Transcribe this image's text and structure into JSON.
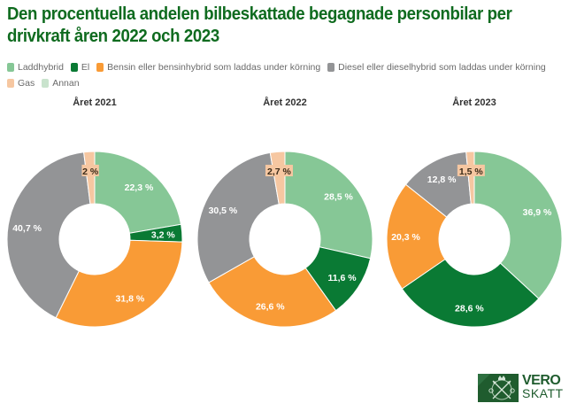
{
  "title": "Den procentuella andelen bilbeskattade begagnade personbilar per drivkraft åren 2022 och 2023",
  "legend": [
    {
      "label": "Laddhybrid",
      "color": "#86c796"
    },
    {
      "label": "El",
      "color": "#0a7a34"
    },
    {
      "label": "Bensin eller bensinhybrid som laddas under körning",
      "color": "#f99b36"
    },
    {
      "label": "Diesel eller dieselhybrid som laddas under körning",
      "color": "#939496"
    },
    {
      "label": "Gas",
      "color": "#f6c7a1"
    },
    {
      "label": "Annan",
      "color": "#c9e3cd"
    }
  ],
  "logo": {
    "line1": "VERO",
    "line2": "SKATT"
  },
  "chart_data": [
    {
      "type": "pie",
      "variant": "donut",
      "title": "Året 2021",
      "categories": [
        "Laddhybrid",
        "El",
        "Bensin eller bensinhybrid som laddas under körning",
        "Diesel eller dieselhybrid som laddas under körning",
        "Gas",
        "Annan"
      ],
      "values": [
        22.3,
        3.2,
        31.8,
        40.7,
        2.0,
        0
      ],
      "labels": [
        "22,3 %",
        "3,2 %",
        "31,8 %",
        "40,7 %",
        "2 %",
        ""
      ],
      "unit": "%",
      "start_angle": "top",
      "direction": "clockwise"
    },
    {
      "type": "pie",
      "variant": "donut",
      "title": "Året 2022",
      "categories": [
        "Laddhybrid",
        "El",
        "Bensin eller bensinhybrid som laddas under körning",
        "Diesel eller dieselhybrid som laddas under körning",
        "Gas",
        "Annan"
      ],
      "values": [
        28.5,
        11.6,
        26.6,
        30.5,
        2.7,
        0
      ],
      "labels": [
        "28,5 %",
        "11,6 %",
        "26,6 %",
        "30,5 %",
        "2,7 %",
        ""
      ],
      "unit": "%",
      "start_angle": "top",
      "direction": "clockwise"
    },
    {
      "type": "pie",
      "variant": "donut",
      "title": "Året 2023",
      "categories": [
        "Laddhybrid",
        "El",
        "Bensin eller bensinhybrid som laddas under körning",
        "Diesel eller dieselhybrid som laddas under körning",
        "Gas",
        "Annan"
      ],
      "values": [
        36.9,
        28.6,
        20.3,
        12.8,
        1.5,
        0
      ],
      "labels": [
        "36,9 %",
        "28,6 %",
        "20,3 %",
        "12,8 %",
        "1,5 %",
        ""
      ],
      "unit": "%",
      "start_angle": "top",
      "direction": "clockwise"
    }
  ]
}
